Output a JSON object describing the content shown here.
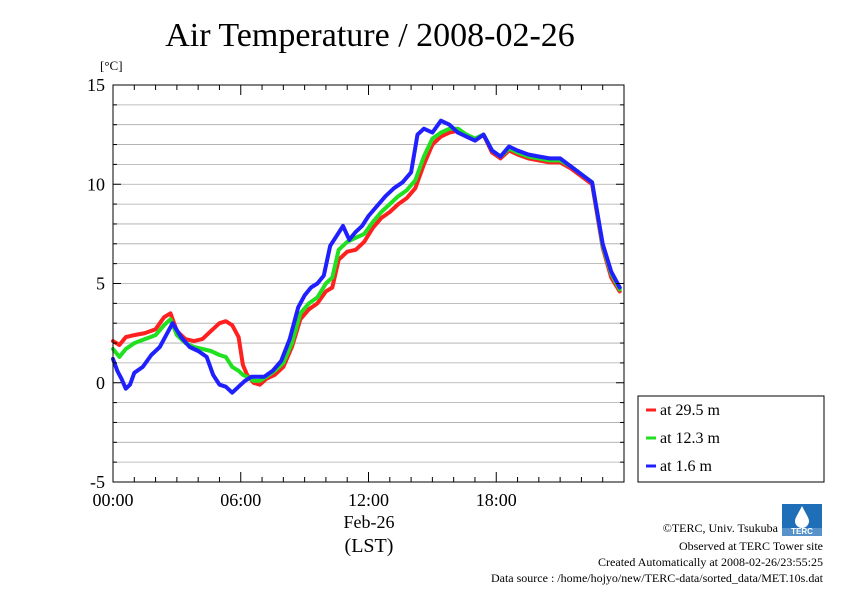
{
  "chart_data": {
    "type": "line",
    "title": "Air Temperature / 2008-02-26",
    "ylabel": "[°C]",
    "xlabel_date": "Feb-26",
    "xlabel": "(LST)",
    "ylim": [
      -5,
      15
    ],
    "xlim": [
      0,
      24
    ],
    "yticks": [
      15,
      10,
      5,
      0,
      -5
    ],
    "ytick_labels": [
      "15",
      "10",
      "5",
      "0",
      "-5"
    ],
    "xticks": [
      0,
      6,
      12,
      18
    ],
    "xtick_labels": [
      "00:00",
      "06:00",
      "12:00",
      "18:00"
    ],
    "grid": true,
    "legend_position": "right",
    "series": [
      {
        "name": "at 29.5 m",
        "color": "#ff2020",
        "x": [
          0,
          0.3,
          0.6,
          1.0,
          1.5,
          2.0,
          2.4,
          2.7,
          3.0,
          3.4,
          3.8,
          4.2,
          4.6,
          5.0,
          5.3,
          5.6,
          5.9,
          6.1,
          6.3,
          6.6,
          6.9,
          7.2,
          7.6,
          8.0,
          8.4,
          8.8,
          9.2,
          9.6,
          10.0,
          10.3,
          10.6,
          11.0,
          11.4,
          11.8,
          12.2,
          12.6,
          13.0,
          13.4,
          13.8,
          14.2,
          14.6,
          15.0,
          15.4,
          15.8,
          16.2,
          16.6,
          17.0,
          17.4,
          17.8,
          18.2,
          18.6,
          19.0,
          19.5,
          20.0,
          20.5,
          21.0,
          21.5,
          22.0,
          22.5,
          23.0,
          23.4,
          23.8
        ],
        "y": [
          2.1,
          1.9,
          2.3,
          2.4,
          2.5,
          2.7,
          3.3,
          3.5,
          2.6,
          2.2,
          2.1,
          2.2,
          2.6,
          3.0,
          3.1,
          2.9,
          2.3,
          0.9,
          0.4,
          0.0,
          -0.1,
          0.2,
          0.4,
          0.8,
          1.8,
          3.2,
          3.7,
          4.0,
          4.6,
          4.8,
          6.2,
          6.6,
          6.7,
          7.1,
          7.8,
          8.3,
          8.6,
          9.0,
          9.3,
          9.8,
          11.0,
          12.0,
          12.4,
          12.6,
          12.7,
          12.4,
          12.2,
          12.5,
          11.6,
          11.3,
          11.7,
          11.5,
          11.3,
          11.2,
          11.1,
          11.1,
          10.8,
          10.4,
          10.0,
          6.8,
          5.3,
          4.6
        ]
      },
      {
        "name": "at 12.3 m",
        "color": "#20e020",
        "x": [
          0,
          0.3,
          0.6,
          1.0,
          1.5,
          2.0,
          2.4,
          2.7,
          3.0,
          3.4,
          3.8,
          4.2,
          4.6,
          5.0,
          5.3,
          5.6,
          5.9,
          6.1,
          6.3,
          6.6,
          6.9,
          7.2,
          7.6,
          8.0,
          8.4,
          8.8,
          9.2,
          9.6,
          10.0,
          10.3,
          10.6,
          11.0,
          11.4,
          11.8,
          12.2,
          12.6,
          13.0,
          13.4,
          13.8,
          14.2,
          14.6,
          15.0,
          15.4,
          15.8,
          16.2,
          16.6,
          17.0,
          17.4,
          17.8,
          18.2,
          18.6,
          19.0,
          19.5,
          20.0,
          20.5,
          21.0,
          21.5,
          22.0,
          22.5,
          23.0,
          23.4,
          23.8
        ],
        "y": [
          1.7,
          1.3,
          1.7,
          2.0,
          2.2,
          2.4,
          2.9,
          3.2,
          2.4,
          2.0,
          1.8,
          1.7,
          1.6,
          1.4,
          1.3,
          0.8,
          0.6,
          0.4,
          0.3,
          0.1,
          0.1,
          0.3,
          0.6,
          1.0,
          2.0,
          3.5,
          4.0,
          4.3,
          5.0,
          5.3,
          6.7,
          7.1,
          7.3,
          7.5,
          8.1,
          8.6,
          9.0,
          9.4,
          9.7,
          10.2,
          11.4,
          12.3,
          12.6,
          12.8,
          12.8,
          12.5,
          12.3,
          12.5,
          11.7,
          11.4,
          11.8,
          11.6,
          11.4,
          11.3,
          11.2,
          11.2,
          10.9,
          10.5,
          10.1,
          6.9,
          5.5,
          4.7
        ]
      },
      {
        "name": "at 1.6 m",
        "color": "#2020ff",
        "x": [
          0,
          0.2,
          0.4,
          0.6,
          0.8,
          1.0,
          1.4,
          1.8,
          2.2,
          2.5,
          2.8,
          3.2,
          3.6,
          4.0,
          4.4,
          4.7,
          5.0,
          5.3,
          5.6,
          5.9,
          6.2,
          6.5,
          6.8,
          7.1,
          7.5,
          7.9,
          8.3,
          8.7,
          9.0,
          9.3,
          9.6,
          9.9,
          10.2,
          10.5,
          10.8,
          11.1,
          11.4,
          11.7,
          12.0,
          12.4,
          12.8,
          13.2,
          13.6,
          14.0,
          14.3,
          14.6,
          15.0,
          15.4,
          15.8,
          16.2,
          16.6,
          17.0,
          17.4,
          17.8,
          18.2,
          18.6,
          19.0,
          19.5,
          20.0,
          20.5,
          21.0,
          21.5,
          22.0,
          22.5,
          23.0,
          23.4,
          23.8
        ],
        "y": [
          1.2,
          0.6,
          0.2,
          -0.3,
          -0.1,
          0.5,
          0.8,
          1.4,
          1.8,
          2.4,
          3.0,
          2.3,
          1.8,
          1.6,
          1.3,
          0.4,
          -0.1,
          -0.2,
          -0.5,
          -0.2,
          0.1,
          0.3,
          0.3,
          0.3,
          0.6,
          1.1,
          2.2,
          3.8,
          4.4,
          4.8,
          5.0,
          5.4,
          6.9,
          7.4,
          7.9,
          7.2,
          7.6,
          7.9,
          8.4,
          8.9,
          9.4,
          9.8,
          10.1,
          10.6,
          12.5,
          12.8,
          12.6,
          13.2,
          13.0,
          12.6,
          12.4,
          12.2,
          12.5,
          11.7,
          11.4,
          11.9,
          11.7,
          11.5,
          11.4,
          11.3,
          11.3,
          10.9,
          10.5,
          10.1,
          7.0,
          5.6,
          4.8
        ]
      }
    ]
  },
  "footer": {
    "copyright": "©TERC, Univ. Tsukuba",
    "observed": "Observed at TERC Tower site",
    "created": "Created Automatically at 2008-02-26/23:55:25",
    "source": "Data source : /home/hojyo/new/TERC-data/sorted_data/MET.10s.dat",
    "logo_text": "TERC"
  }
}
